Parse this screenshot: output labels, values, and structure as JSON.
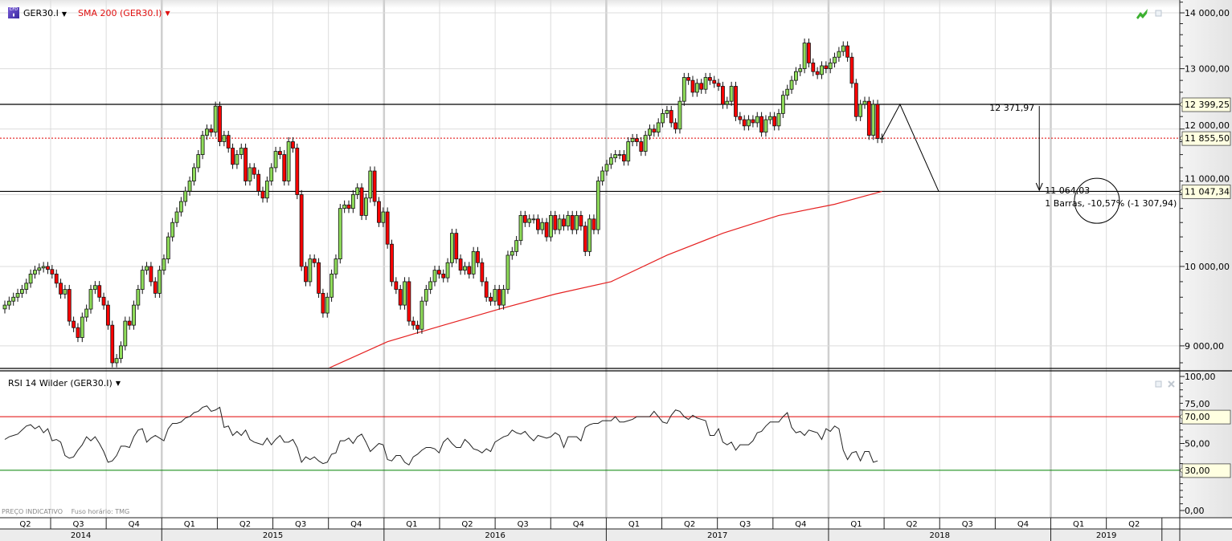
{
  "legend": {
    "symbol": "GER30.I",
    "symbol_icon": "cfd-icon",
    "overlay": "SMA 200 (GER30.I)",
    "indicator": "RSI 14 Wilder (GER30.I)"
  },
  "footer": {
    "indicative": "PREÇO INDICATIVO",
    "timezone": "Fuso horário: TMG"
  },
  "colors": {
    "up": "#8fdc5a",
    "down": "#ff0000",
    "sma": "#e52020",
    "last_price": "#e00000",
    "rsi": "#222222",
    "overbought": "#e00000",
    "oversold": "#008000",
    "label_bg": "#ffffe1"
  },
  "x_axis": {
    "quarters": [
      "Q2",
      "Q3",
      "Q4",
      "Q1",
      "Q2",
      "Q3",
      "Q4",
      "Q1",
      "Q2",
      "Q3",
      "Q4",
      "Q1",
      "Q2",
      "Q3",
      "Q4",
      "Q1",
      "Q2",
      "Q3",
      "Q4",
      "Q1",
      "Q2"
    ],
    "years": [
      "2014",
      "2015",
      "2016",
      "2017",
      "2018",
      "2019"
    ]
  },
  "chart_data": [
    {
      "type": "candlestick",
      "title": "GER30.I",
      "interval": "weekly",
      "y_scale": "log",
      "ylim": [
        8760,
        14000
      ],
      "grid": true,
      "y_ticks": [
        {
          "value": 14000,
          "label": "14 000,00"
        },
        {
          "value": 13000,
          "label": "13 000,00"
        },
        {
          "value": 12000,
          "label": "12 000,00"
        },
        {
          "value": 11000,
          "label": "11 000,00"
        },
        {
          "value": 10000,
          "label": "10 000,00"
        },
        {
          "value": 9000,
          "label": "9 000,00"
        }
      ],
      "close": [
        9500,
        9550,
        9600,
        9650,
        9700,
        9780,
        9900,
        9950,
        9980,
        10000,
        9960,
        9900,
        9780,
        9640,
        9700,
        9300,
        9220,
        9100,
        9350,
        9450,
        9700,
        9750,
        9600,
        9500,
        9250,
        8800,
        8850,
        9000,
        9300,
        9250,
        9500,
        9700,
        9950,
        10000,
        9800,
        9650,
        9950,
        10100,
        10400,
        10600,
        10750,
        10900,
        11050,
        11200,
        11400,
        11600,
        11900,
        12000,
        11950,
        12370,
        11800,
        11900,
        11700,
        11450,
        11600,
        11700,
        11200,
        11400,
        11300,
        11050,
        10950,
        11200,
        11400,
        11650,
        11600,
        11200,
        11800,
        11700,
        11000,
        10000,
        9800,
        10100,
        10050,
        9650,
        9400,
        9600,
        9900,
        10100,
        10800,
        10850,
        10800,
        11000,
        11100,
        10700,
        10950,
        11350,
        10900,
        10600,
        10750,
        10300,
        9800,
        9700,
        9500,
        9800,
        9300,
        9250,
        9200,
        9550,
        9700,
        9800,
        9950,
        9900,
        9850,
        10050,
        10450,
        10100,
        9950,
        10000,
        9900,
        10200,
        10050,
        9800,
        9600,
        9550,
        9700,
        9500,
        9700,
        10150,
        10200,
        10350,
        10700,
        10600,
        10650,
        10650,
        10500,
        10600,
        10400,
        10700,
        10500,
        10650,
        10550,
        10700,
        10500,
        10700,
        10550,
        10200,
        10650,
        10500,
        11200,
        11350,
        11450,
        11550,
        11600,
        11600,
        11500,
        11800,
        11850,
        11800,
        11650,
        11900,
        12000,
        11950,
        12100,
        12250,
        12300,
        12100,
        12000,
        12450,
        12850,
        12800,
        12600,
        12750,
        12650,
        12850,
        12800,
        12750,
        12700,
        12400,
        12450,
        12700,
        12200,
        12150,
        12050,
        12150,
        12100,
        12200,
        11950,
        12150,
        12200,
        12050,
        12250,
        12550,
        12650,
        12800,
        12950,
        13000,
        13450,
        13100,
        12950,
        12900,
        13050,
        13000,
        13100,
        13200,
        13300,
        13400,
        13200,
        12750,
        12200,
        12400,
        12450,
        11900,
        12400,
        11850,
        11855.5
      ],
      "overlay": {
        "name": "SMA 200 (GER30.I)",
        "points": [
          [
            75,
            8730
          ],
          [
            89,
            9050
          ],
          [
            102,
            9250
          ],
          [
            115,
            9450
          ],
          [
            128,
            9640
          ],
          [
            141,
            9800
          ],
          [
            154,
            10150
          ],
          [
            167,
            10450
          ],
          [
            180,
            10700
          ],
          [
            193,
            10860
          ],
          [
            204,
            11047
          ]
        ]
      },
      "last_price": {
        "value": 11855.5,
        "label": "11 855,50"
      },
      "horizontal_lines": [
        {
          "value": 12399.25,
          "label": "12 399,25"
        },
        {
          "value": 11047.34,
          "label": "11 047,34"
        }
      ],
      "drawings": {
        "zigzag": [
          [
            204,
            11855.5
          ],
          [
            208.2,
            12399.25
          ],
          [
            217.2,
            11047.34
          ]
        ],
        "measure": {
          "week": 240.6,
          "from": 12371.97,
          "to": 11064.03,
          "from_label": "12 371,97",
          "to_label": "11 064,03",
          "summary": "1 Barras, -10,57% (-1 307,94)"
        },
        "circle": {
          "week": 254,
          "price": 10910
        }
      }
    },
    {
      "type": "line",
      "title": "RSI 14 Wilder (GER30.I)",
      "ylim": [
        0,
        100
      ],
      "levels": [
        {
          "value": 70,
          "label": "70,00"
        },
        {
          "value": 30,
          "label": "30,00"
        }
      ],
      "y_ticks": [
        {
          "value": 100,
          "label": "100,00"
        },
        {
          "value": 75,
          "label": "75,00"
        },
        {
          "value": 50,
          "label": "50,00"
        },
        {
          "value": 0,
          "label": "0,00"
        }
      ],
      "values": [
        53,
        55,
        56,
        57,
        60,
        63,
        64,
        61,
        63,
        58,
        61,
        52,
        53,
        51,
        41,
        39,
        40,
        45,
        49,
        55,
        52,
        55,
        50,
        44,
        36,
        37,
        41,
        48,
        48,
        47,
        55,
        60,
        61,
        51,
        54,
        56,
        54,
        52,
        61,
        65,
        65,
        66,
        69,
        70,
        73,
        74,
        77,
        78,
        74,
        75,
        77,
        62,
        63,
        56,
        59,
        56,
        60,
        53,
        51,
        50,
        49,
        54,
        49,
        53,
        56,
        51,
        51,
        53,
        47,
        36,
        40,
        38,
        40,
        37,
        35,
        36,
        42,
        43,
        52,
        52,
        54,
        50,
        55,
        57,
        51,
        44,
        47,
        50,
        49,
        38,
        37,
        41,
        41,
        36,
        34,
        40,
        42,
        45,
        47,
        47,
        46,
        43,
        51,
        54,
        50,
        47,
        47,
        53,
        50,
        46,
        45,
        43,
        46,
        44,
        51,
        53,
        55,
        56,
        60,
        58,
        57,
        59,
        55,
        52,
        56,
        55,
        54,
        55,
        58,
        56,
        47,
        55,
        55,
        55,
        52,
        62,
        64,
        65,
        65,
        67,
        67,
        67,
        70,
        66,
        66,
        67,
        68,
        70,
        70,
        70,
        70,
        74,
        70,
        66,
        65,
        71,
        75,
        74,
        70,
        68,
        71,
        69,
        68,
        67,
        56,
        56,
        61,
        51,
        49,
        51,
        45,
        49,
        49,
        49,
        52,
        58,
        59,
        63,
        66,
        66,
        66,
        70,
        73,
        62,
        58,
        59,
        56,
        60,
        59,
        58,
        53,
        61,
        59,
        63,
        61,
        45,
        38,
        43,
        44,
        37,
        44,
        44,
        36,
        37
      ]
    }
  ]
}
